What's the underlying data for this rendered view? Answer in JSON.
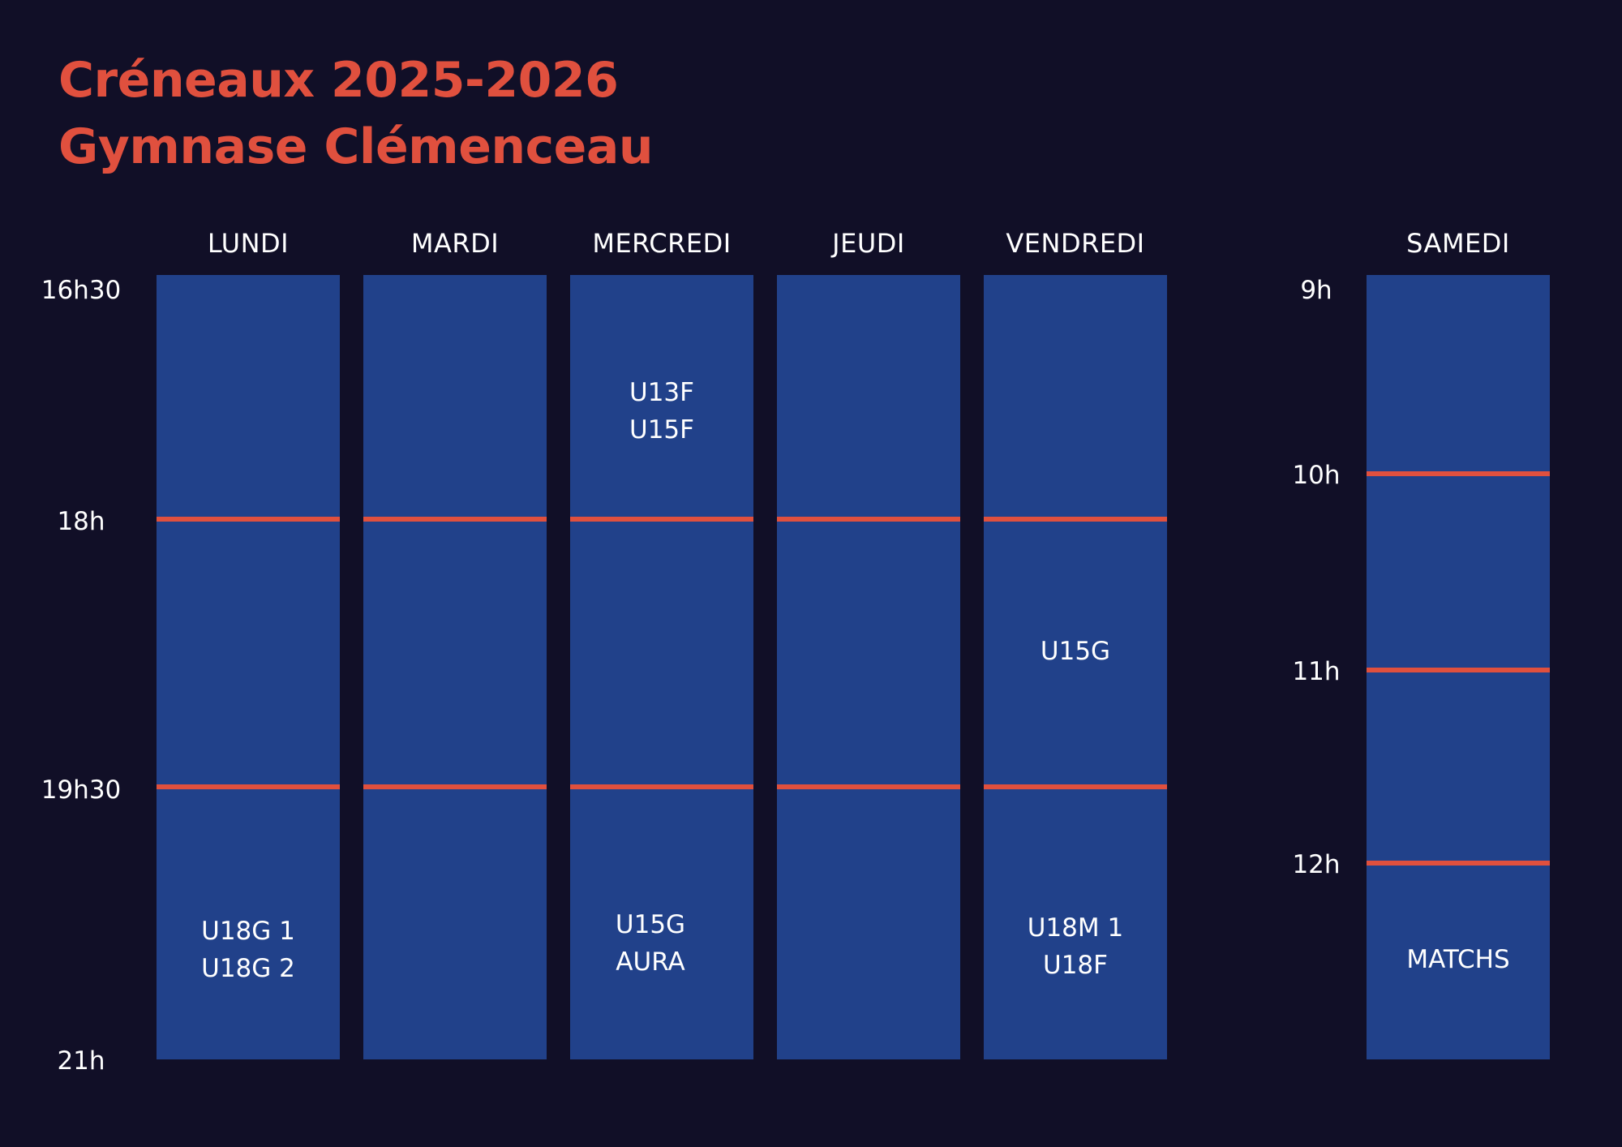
{
  "title": {
    "line1": "Créneaux 2025-2026",
    "line2": "Gymnase Clémenceau"
  },
  "accent_color": "#e0503e",
  "column_color": "#21418a",
  "background_color": "#110f27",
  "weekday_times": [
    "16h30",
    "18h",
    "19h30",
    "21h"
  ],
  "saturday_times": [
    "9h",
    "10h",
    "11h",
    "12h"
  ],
  "days": {
    "lundi": {
      "name": "LUNDI",
      "slot3": [
        "U18G 1",
        "U18G 2"
      ]
    },
    "mardi": {
      "name": "MARDI"
    },
    "mercredi": {
      "name": "MERCREDI",
      "slot1": [
        "U13F",
        "U15F"
      ],
      "slot3": [
        "U15G",
        "AURA"
      ]
    },
    "jeudi": {
      "name": "JEUDI"
    },
    "vendredi": {
      "name": "VENDREDI",
      "slot2": [
        "U15G"
      ],
      "slot3": [
        "U18M 1",
        "U18F"
      ]
    },
    "samedi": {
      "name": "SAMEDI",
      "slot4": [
        "MATCHS"
      ]
    }
  }
}
